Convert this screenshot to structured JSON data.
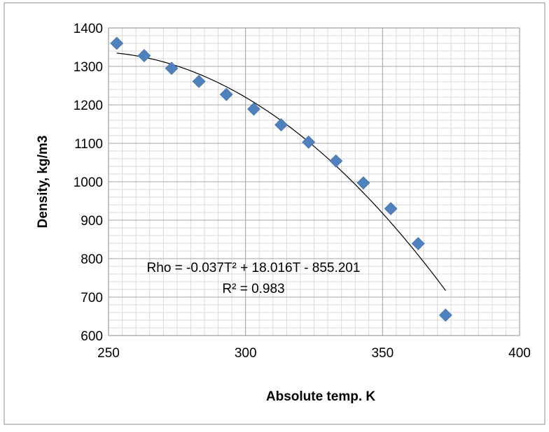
{
  "chart_data": {
    "type": "scatter",
    "title": "",
    "xlabel": "Absolute temp. K",
    "ylabel": "Density, kg/m3",
    "xlim": [
      250,
      400
    ],
    "ylim": [
      600,
      1400
    ],
    "x_ticks": [
      250,
      300,
      350,
      400
    ],
    "y_ticks": [
      600,
      700,
      800,
      900,
      1000,
      1100,
      1200,
      1300,
      1400
    ],
    "x_tick_labels": [
      "250",
      "300",
      "350",
      "400"
    ],
    "y_tick_labels": [
      "600",
      "700",
      "800",
      "900",
      "1000",
      "1100",
      "1200",
      "1300",
      "1400"
    ],
    "grid": true,
    "minor_x_step": 5,
    "minor_y_step": 20,
    "series": [
      {
        "name": "",
        "color": "#4F81BD",
        "marker": "diamond",
        "x": [
          253,
          263,
          273,
          283,
          293,
          303,
          313,
          323,
          333,
          343,
          353,
          363,
          373
        ],
        "y": [
          1360,
          1328,
          1295,
          1261,
          1227,
          1189,
          1148,
          1103,
          1054,
          997,
          930,
          839,
          653
        ]
      }
    ],
    "trendline": {
      "type": "polynomial",
      "order": 2,
      "coefficients": [
        -0.037,
        18.016,
        -855.201
      ],
      "x_range": [
        253,
        373
      ],
      "color": "#000000"
    },
    "annotations": {
      "equation": "Rho = -0.037T² + 18.016T - 855.201",
      "r_squared": "R² = 0.983"
    }
  }
}
